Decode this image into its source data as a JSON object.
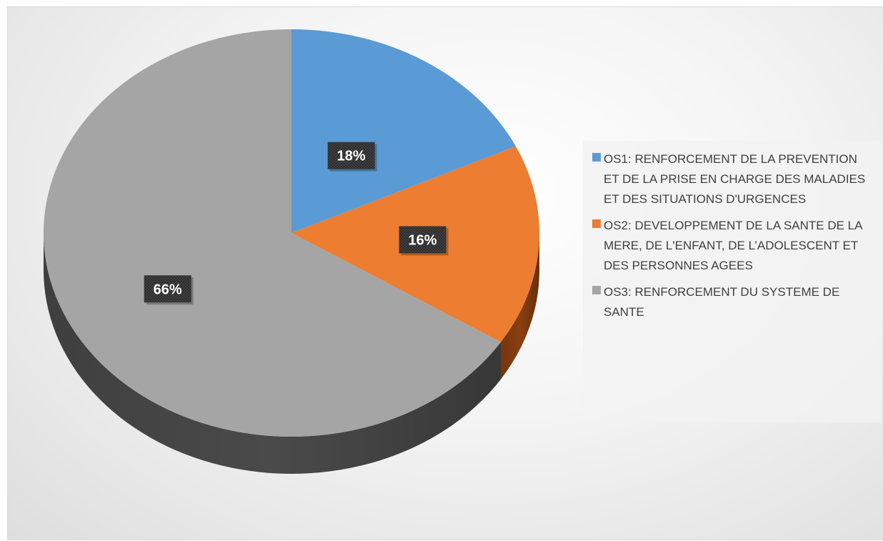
{
  "chart_data": {
    "type": "pie",
    "style": "3d",
    "categories": [
      "OS1: RENFORCEMENT DE LA PREVENTION ET DE LA PRISE EN CHARGE DES MALADIES ET DES SITUATIONS D'URGENCES",
      "OS2: DEVELOPPEMENT DE LA SANTE DE LA MERE, DE L'ENFANT, DE L’ADOLESCENT ET DES PERSONNES AGEES",
      "OS3: RENFORCEMENT DU SYSTEME DE SANTE"
    ],
    "values": [
      18,
      16,
      66
    ],
    "data_labels": [
      "18%",
      "16%",
      "66%"
    ],
    "colors": [
      "#5b9bd5",
      "#ed7d31",
      "#a5a5a5"
    ],
    "side_colors": [
      "#3a6a96",
      "#8a3f10",
      "#4a4a4a"
    ],
    "legend_position": "right"
  },
  "legend": {
    "items": [
      {
        "label": "OS1: RENFORCEMENT DE LA PREVENTION ET DE LA PRISE EN CHARGE DES MALADIES ET DES SITUATIONS D'URGENCES",
        "color": "#5b9bd5"
      },
      {
        "label": "OS2: DEVELOPPEMENT DE LA SANTE DE LA MERE, DE L'ENFANT, DE L’ADOLESCENT ET DES PERSONNES AGEES",
        "color": "#ed7d31"
      },
      {
        "label": "OS3: RENFORCEMENT DU SYSTEME DE SANTE",
        "color": "#a5a5a5"
      }
    ]
  }
}
